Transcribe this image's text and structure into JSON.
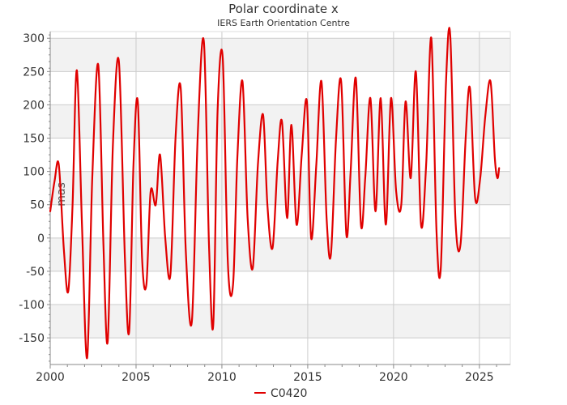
{
  "chart_data": {
    "type": "line",
    "title": "Polar coordinate x",
    "subtitle": "IERS Earth Orientation Centre",
    "xlabel": "",
    "ylabel": "mas",
    "xlim": [
      2000,
      2026.8
    ],
    "ylim": [
      -190,
      310
    ],
    "x_ticks": [
      "2000",
      "2005",
      "2010",
      "2015",
      "2020",
      "2025"
    ],
    "y_ticks": [
      "300",
      "250",
      "200",
      "150",
      "100",
      "50",
      "0",
      "-50",
      "-100",
      "-150"
    ],
    "grid": true,
    "legend": "bottom-center",
    "colors": {
      "series": "#e00000",
      "band": "#f2f2f2",
      "grid": "#cccccc",
      "axis": "#888888"
    },
    "series": [
      {
        "name": "C0420",
        "x": [
          2000.0,
          2000.25,
          2000.5,
          2000.8,
          2001.05,
          2001.3,
          2001.55,
          2001.85,
          2002.15,
          2002.45,
          2002.8,
          2003.1,
          2003.35,
          2003.65,
          2004.0,
          2004.35,
          2004.6,
          2004.85,
          2005.1,
          2005.35,
          2005.6,
          2005.85,
          2006.15,
          2006.4,
          2006.7,
          2007.0,
          2007.3,
          2007.6,
          2007.9,
          2008.25,
          2008.6,
          2008.95,
          2009.25,
          2009.5,
          2009.75,
          2010.05,
          2010.35,
          2010.65,
          2010.9,
          2011.2,
          2011.5,
          2011.8,
          2012.1,
          2012.4,
          2012.65,
          2012.95,
          2013.25,
          2013.5,
          2013.8,
          2014.05,
          2014.35,
          2014.65,
          2014.95,
          2015.2,
          2015.5,
          2015.8,
          2016.1,
          2016.35,
          2016.65,
          2016.95,
          2017.25,
          2017.5,
          2017.8,
          2018.1,
          2018.35,
          2018.65,
          2018.95,
          2019.25,
          2019.55,
          2019.85,
          2020.15,
          2020.45,
          2020.7,
          2021.0,
          2021.3,
          2021.6,
          2021.9,
          2022.2,
          2022.5,
          2022.75,
          2023.05,
          2023.3,
          2023.6,
          2023.9,
          2024.2,
          2024.45,
          2024.75,
          2025.05,
          2025.35,
          2025.65,
          2025.9,
          2026.05,
          2026.15
        ],
        "y": [
          40,
          85,
          110,
          -20,
          -80,
          50,
          252,
          20,
          -180,
          90,
          260,
          -10,
          -155,
          140,
          265,
          -30,
          -140,
          110,
          205,
          -30,
          -70,
          70,
          50,
          125,
          0,
          -55,
          150,
          225,
          -20,
          -125,
          160,
          295,
          -10,
          -130,
          190,
          270,
          -40,
          -70,
          120,
          235,
          30,
          -45,
          110,
          185,
          50,
          -15,
          115,
          175,
          30,
          170,
          20,
          125,
          205,
          0,
          110,
          235,
          30,
          -25,
          150,
          235,
          5,
          100,
          240,
          20,
          90,
          210,
          40,
          210,
          20,
          210,
          70,
          50,
          205,
          90,
          250,
          20,
          110,
          300,
          10,
          -45,
          230,
          305,
          30,
          -10,
          150,
          225,
          60,
          90,
          185,
          235,
          120,
          90,
          105
        ]
      }
    ]
  }
}
